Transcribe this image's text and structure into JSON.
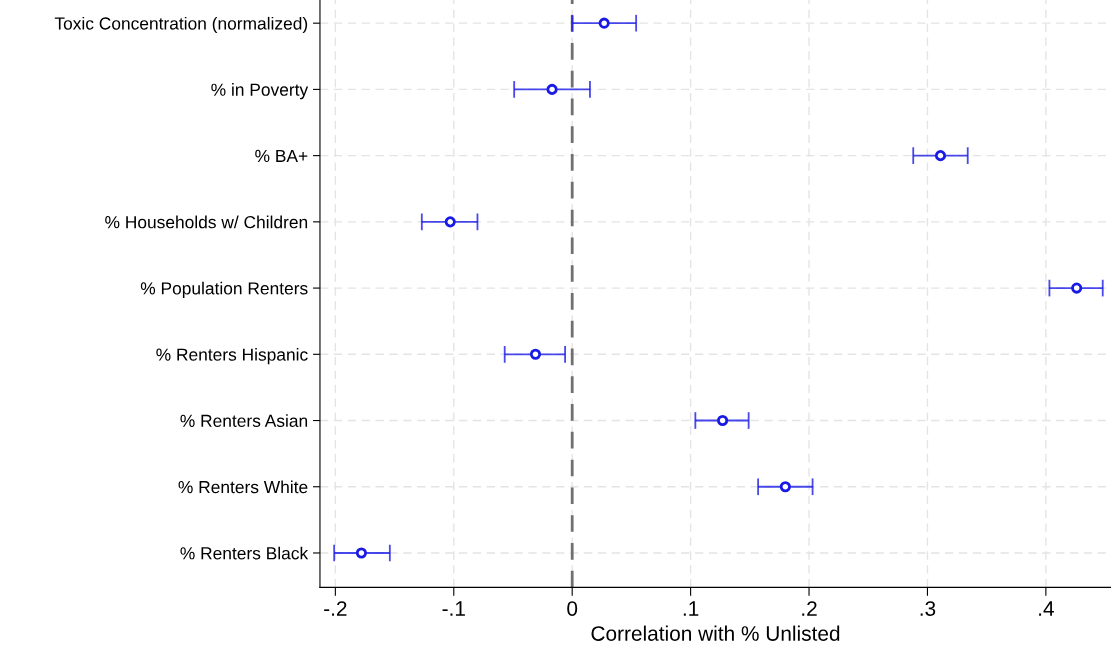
{
  "chart_data": {
    "type": "scatter",
    "orientation": "horizontal",
    "xlabel": "Correlation with % Unlisted",
    "categories": [
      "Toxic Concentration (normalized)",
      "% in Poverty",
      "% BA+",
      "% Households w/ Children",
      "% Population Renters",
      "% Renters Hispanic",
      "% Renters Asian",
      "% Renters White",
      "% Renters Black"
    ],
    "series": [
      {
        "color": "#1a1ae6",
        "values": [
          0.027,
          -0.017,
          0.311,
          -0.103,
          0.426,
          -0.031,
          0.127,
          0.18,
          -0.178
        ],
        "errors": [
          [
            0,
            0.054
          ],
          [
            -0.049,
            0.015
          ],
          [
            0.288,
            0.334
          ],
          [
            -0.127,
            -0.08
          ],
          [
            0.403,
            0.448
          ],
          [
            -0.057,
            -0.006
          ],
          [
            0.104,
            0.149
          ],
          [
            0.157,
            0.203
          ],
          [
            -0.201,
            -0.154
          ]
        ]
      }
    ],
    "xlim": [
      -0.213,
      0.455
    ],
    "xticks": [
      {
        "value": -0.2,
        "label": "-.2"
      },
      {
        "value": -0.1,
        "label": "-.1"
      },
      0,
      {
        "value": 0.1,
        "label": ".1"
      },
      {
        "value": 0.2,
        "label": ".2"
      },
      {
        "value": 0.3,
        "label": ".3"
      },
      {
        "value": 0.4,
        "label": ".4"
      }
    ],
    "ref_lines": [
      {
        "axis": "x",
        "value": 0,
        "color": "#707070",
        "line_style": "dashed"
      }
    ],
    "grid": true,
    "marker": "circle"
  }
}
